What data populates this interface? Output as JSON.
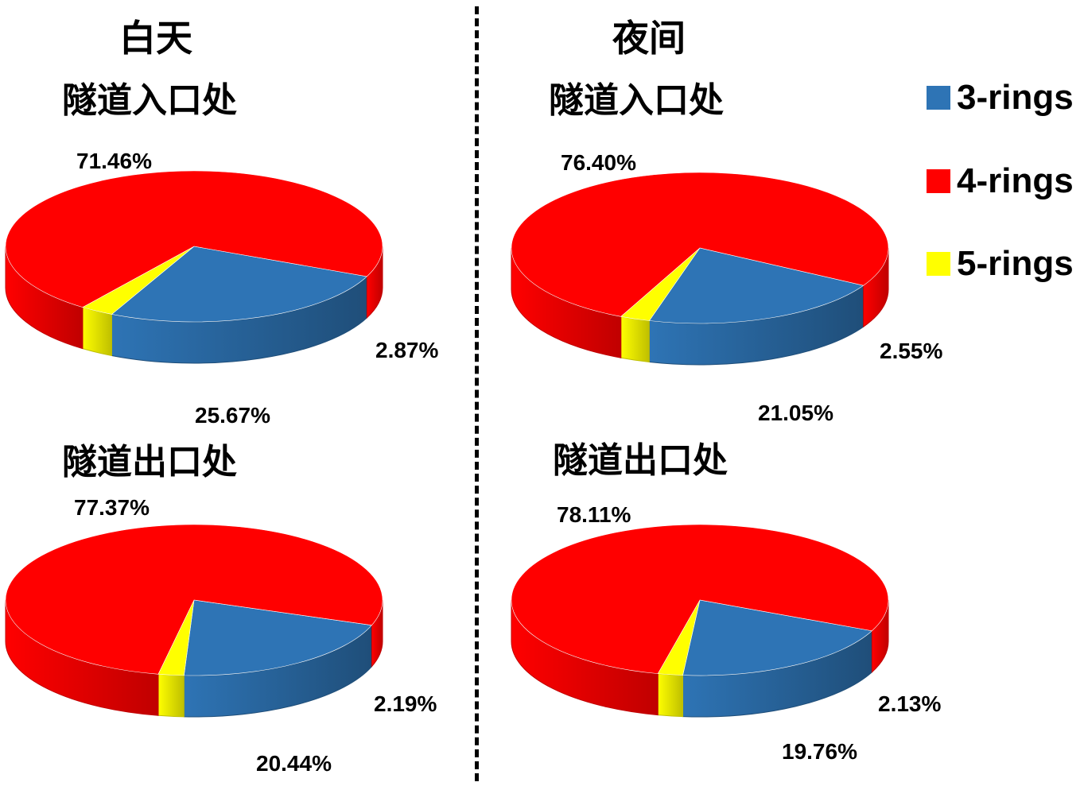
{
  "headers": {
    "day": "白天",
    "night": "夜间"
  },
  "legend": [
    {
      "name": "3-rings",
      "color": "#2E74B5"
    },
    {
      "name": "4-rings",
      "color": "#FF0000"
    },
    {
      "name": "5-rings",
      "color": "#FFFF00"
    }
  ],
  "chart_data": [
    {
      "type": "pie",
      "title": "隧道入口处",
      "categories": [
        "3-rings",
        "4-rings",
        "5-rings"
      ],
      "values": [
        25.67,
        71.46,
        2.87
      ],
      "labels": [
        "25.67%",
        "71.46%",
        "2.87%"
      ]
    },
    {
      "type": "pie",
      "title": "隧道入口处",
      "categories": [
        "3-rings",
        "4-rings",
        "5-rings"
      ],
      "values": [
        21.05,
        76.4,
        2.55
      ],
      "labels": [
        "21.05%",
        "76.40%",
        "2.55%"
      ]
    },
    {
      "type": "pie",
      "title": "隧道出口处",
      "categories": [
        "3-rings",
        "4-rings",
        "5-rings"
      ],
      "values": [
        20.44,
        77.37,
        2.19
      ],
      "labels": [
        "20.44%",
        "77.37%",
        "2.19%"
      ]
    },
    {
      "type": "pie",
      "title": "隧道出口处",
      "categories": [
        "3-rings",
        "4-rings",
        "5-rings"
      ],
      "values": [
        19.76,
        78.11,
        2.13
      ],
      "labels": [
        "19.76%",
        "78.11%",
        "2.13%"
      ]
    }
  ]
}
